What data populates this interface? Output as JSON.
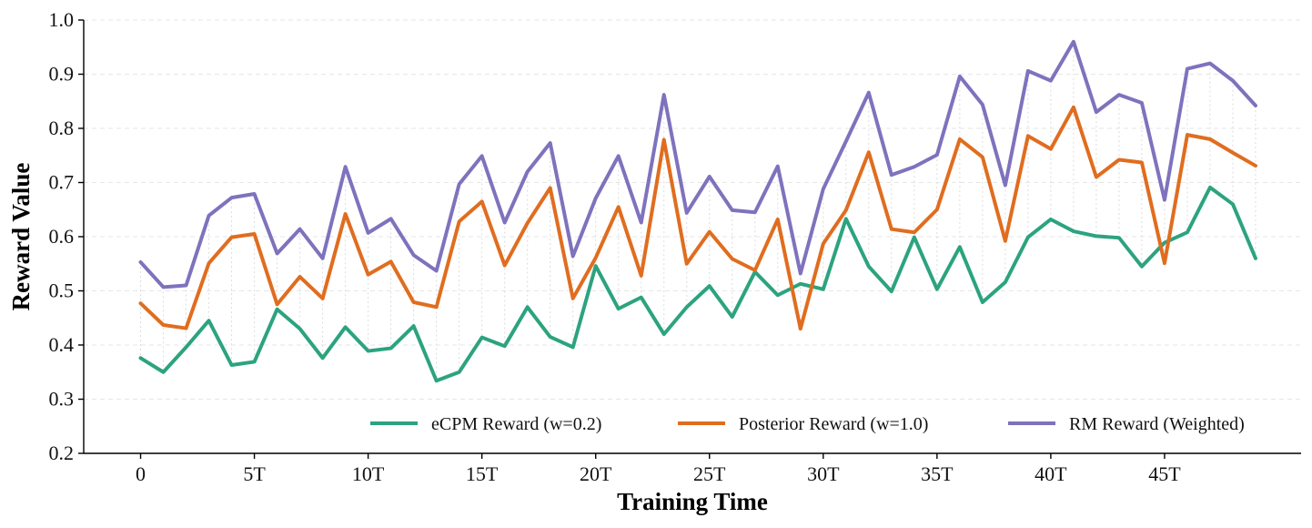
{
  "chart_data": {
    "type": "line",
    "title": "",
    "xlabel": "Training Time",
    "ylabel": "Reward Value",
    "xlim": [
      -2.5,
      51
    ],
    "ylim": [
      0.2,
      1.0
    ],
    "x": [
      0,
      1,
      2,
      3,
      4,
      5,
      6,
      7,
      8,
      9,
      10,
      11,
      12,
      13,
      14,
      15,
      16,
      17,
      18,
      19,
      20,
      21,
      22,
      23,
      24,
      25,
      26,
      27,
      28,
      29,
      30,
      31,
      32,
      33,
      34,
      35,
      36,
      37,
      38,
      39,
      40,
      41,
      42,
      43,
      44,
      45,
      46,
      47,
      48,
      49
    ],
    "x_ticks": [
      0,
      5,
      10,
      15,
      20,
      25,
      30,
      35,
      40,
      45
    ],
    "x_tick_labels": [
      "0",
      "5T",
      "10T",
      "15T",
      "20T",
      "25T",
      "30T",
      "35T",
      "40T",
      "45T"
    ],
    "y_ticks": [
      0.2,
      0.3,
      0.4,
      0.5,
      0.6,
      0.7,
      0.8,
      0.9,
      1.0
    ],
    "y_tick_labels": [
      "0.2",
      "0.3",
      "0.4",
      "0.5",
      "0.6",
      "0.7",
      "0.8",
      "0.9",
      "1.0"
    ],
    "grid": true,
    "legend_position": "bottom-right",
    "series": [
      {
        "name": "eCPM Reward (w=0.2)",
        "color": "#2ca37f",
        "values": [
          0.376,
          0.35,
          0.396,
          0.445,
          0.363,
          0.369,
          0.466,
          0.43,
          0.376,
          0.433,
          0.389,
          0.394,
          0.435,
          0.334,
          0.35,
          0.414,
          0.398,
          0.47,
          0.415,
          0.396,
          0.546,
          0.467,
          0.488,
          0.42,
          0.47,
          0.509,
          0.452,
          0.535,
          0.492,
          0.513,
          0.503,
          0.633,
          0.545,
          0.499,
          0.599,
          0.503,
          0.581,
          0.479,
          0.516,
          0.599,
          0.632,
          0.61,
          0.601,
          0.598,
          0.545,
          0.589,
          0.608,
          0.691,
          0.66,
          0.56
        ]
      },
      {
        "name": "Posterior Reward (w=1.0)",
        "color": "#e06d1f",
        "values": [
          0.477,
          0.437,
          0.431,
          0.551,
          0.599,
          0.605,
          0.475,
          0.526,
          0.486,
          0.642,
          0.53,
          0.554,
          0.479,
          0.47,
          0.628,
          0.665,
          0.547,
          0.625,
          0.69,
          0.486,
          0.561,
          0.655,
          0.528,
          0.779,
          0.55,
          0.609,
          0.559,
          0.538,
          0.632,
          0.43,
          0.587,
          0.649,
          0.756,
          0.614,
          0.608,
          0.65,
          0.78,
          0.747,
          0.592,
          0.786,
          0.762,
          0.839,
          0.71,
          0.742,
          0.737,
          0.551,
          0.788,
          0.78,
          0.755,
          0.731
        ]
      },
      {
        "name": "RM Reward (Weighted)",
        "color": "#7f72bd",
        "values": [
          0.553,
          0.507,
          0.51,
          0.639,
          0.672,
          0.679,
          0.569,
          0.614,
          0.56,
          0.729,
          0.607,
          0.633,
          0.566,
          0.537,
          0.697,
          0.749,
          0.626,
          0.72,
          0.773,
          0.564,
          0.671,
          0.749,
          0.626,
          0.862,
          0.644,
          0.711,
          0.649,
          0.645,
          0.73,
          0.532,
          0.688,
          0.776,
          0.866,
          0.714,
          0.729,
          0.751,
          0.896,
          0.844,
          0.695,
          0.906,
          0.888,
          0.96,
          0.83,
          0.862,
          0.847,
          0.668,
          0.91,
          0.92,
          0.888,
          0.842
        ]
      }
    ]
  }
}
